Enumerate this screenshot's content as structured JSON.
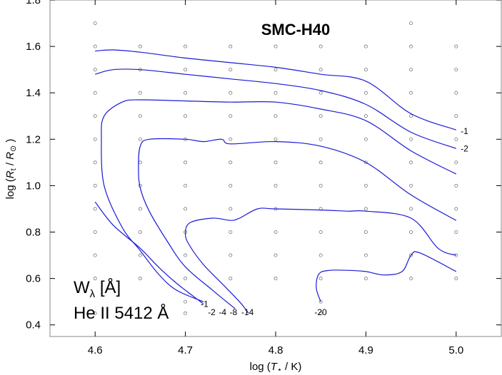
{
  "chart_data": {
    "type": "contour",
    "title": "SMC-H40",
    "xlabel": {
      "pre": "log (",
      "sym": "T",
      "sub": "⋆",
      "post": " / K)"
    },
    "ylabel": {
      "pre": "log (",
      "sym": "R",
      "sub": "t",
      "mid": " / ",
      "sym2": "R",
      "sub2": "⊙",
      "post": " )"
    },
    "xlim": [
      4.55,
      5.05
    ],
    "ylim": [
      0.35,
      1.8
    ],
    "xticks": [
      4.6,
      4.7,
      4.8,
      4.9,
      5.0
    ],
    "xtick_labels": [
      "4.6",
      "4.7",
      "4.8",
      "4.9",
      "5.0"
    ],
    "yticks": [
      0.4,
      0.6,
      0.8,
      1.0,
      1.2,
      1.4,
      1.6,
      1.8
    ],
    "ytick_labels": [
      "0.4",
      "0.6",
      "0.8",
      "1.0",
      "1.2",
      "1.4",
      "1.6",
      "1.8"
    ],
    "annotation": {
      "line1_main": "W",
      "line1_sub": "λ",
      "line1_unit": " [Å]",
      "line2": "He II 5412 Å"
    },
    "grid_models": {
      "x": [
        4.6,
        4.65,
        4.7,
        4.75,
        4.8,
        4.85,
        4.9,
        4.95,
        5.0
      ],
      "y": [
        0.45,
        0.5,
        0.6,
        0.7,
        0.8,
        0.9,
        1.0,
        1.1,
        1.2,
        1.3,
        1.4,
        1.5,
        1.6,
        1.7
      ],
      "missing": [
        [
          4.65,
          0.45
        ],
        [
          4.75,
          0.45
        ],
        [
          4.8,
          0.45
        ],
        [
          4.9,
          0.45
        ],
        [
          4.95,
          0.45
        ],
        [
          5.0,
          0.45
        ],
        [
          4.6,
          0.5
        ],
        [
          4.65,
          0.5
        ],
        [
          4.75,
          0.5
        ],
        [
          4.8,
          0.5
        ],
        [
          4.9,
          0.5
        ],
        [
          4.95,
          0.5
        ],
        [
          5.0,
          0.5
        ],
        [
          4.65,
          1.7
        ],
        [
          4.7,
          1.7
        ],
        [
          4.75,
          1.7
        ],
        [
          4.8,
          1.7
        ],
        [
          4.85,
          1.7
        ],
        [
          4.9,
          1.7
        ],
        [
          5.0,
          1.7
        ]
      ]
    },
    "series": [
      {
        "label": "-1",
        "x": [
          4.6,
          4.62,
          4.65,
          4.7,
          4.75,
          4.8,
          4.85,
          4.9,
          4.95,
          5.0
        ],
        "y": [
          1.58,
          1.585,
          1.575,
          1.55,
          1.53,
          1.51,
          1.48,
          1.45,
          1.31,
          1.24
        ]
      },
      {
        "label": "-2",
        "x": [
          4.6,
          4.62,
          4.65,
          4.7,
          4.75,
          4.8,
          4.85,
          4.9,
          4.95,
          5.0
        ],
        "y": [
          1.48,
          1.5,
          1.5,
          1.48,
          1.46,
          1.44,
          1.41,
          1.35,
          1.23,
          1.16
        ]
      },
      {
        "label": "-4",
        "x": [
          4.72,
          4.69,
          4.67,
          4.65,
          4.63,
          4.61,
          4.607,
          4.61,
          4.63,
          4.65,
          4.7,
          4.75,
          4.8,
          4.85,
          4.9,
          4.95,
          5.0
        ],
        "y": [
          0.5,
          0.55,
          0.62,
          0.72,
          0.82,
          1.0,
          1.2,
          1.3,
          1.36,
          1.37,
          1.365,
          1.36,
          1.36,
          1.33,
          1.28,
          1.15,
          1.05
        ]
      },
      {
        "label": "-8",
        "x": [
          4.755,
          4.73,
          4.7,
          4.68,
          4.66,
          4.65,
          4.648,
          4.65,
          4.66,
          4.7,
          4.72,
          4.74,
          4.75,
          4.8,
          4.85,
          4.9,
          4.95,
          5.0
        ],
        "y": [
          0.47,
          0.55,
          0.65,
          0.76,
          0.89,
          0.99,
          1.08,
          1.17,
          1.2,
          1.2,
          1.19,
          1.2,
          1.18,
          1.19,
          1.17,
          1.1,
          0.96,
          0.85
        ]
      },
      {
        "label": "-14",
        "x": [
          4.77,
          4.76,
          4.74,
          4.72,
          4.705,
          4.7,
          4.705,
          4.73,
          4.75,
          4.76,
          4.78,
          4.8,
          4.85,
          4.88,
          4.9,
          4.95,
          4.98,
          5.0
        ],
        "y": [
          0.45,
          0.5,
          0.58,
          0.66,
          0.74,
          0.79,
          0.84,
          0.86,
          0.85,
          0.86,
          0.9,
          0.9,
          0.895,
          0.89,
          0.89,
          0.86,
          0.73,
          0.7
        ]
      },
      {
        "label": "-20",
        "x": [
          4.85,
          4.845,
          4.848,
          4.86,
          4.88,
          4.9,
          4.92,
          4.94,
          4.95,
          4.96,
          5.0
        ],
        "y": [
          0.5,
          0.56,
          0.62,
          0.635,
          0.635,
          0.63,
          0.615,
          0.63,
          0.7,
          0.71,
          0.63
        ]
      },
      {
        "label": "",
        "x": [
          4.6,
          4.62,
          4.65,
          4.67,
          4.69,
          4.71,
          4.72
        ],
        "y": [
          0.93,
          0.83,
          0.73,
          0.65,
          0.58,
          0.52,
          0.49
        ]
      }
    ],
    "contour_labels": [
      {
        "text": "-1",
        "x": 5.005,
        "y": 1.235
      },
      {
        "text": "-2",
        "x": 5.005,
        "y": 1.16
      },
      {
        "text": "-1",
        "x": 4.717,
        "y": 0.49
      },
      {
        "text": "-2",
        "x": 4.725,
        "y": 0.455
      },
      {
        "text": "-4",
        "x": 4.737,
        "y": 0.455
      },
      {
        "text": "-8",
        "x": 4.749,
        "y": 0.455
      },
      {
        "text": "-14",
        "x": 4.762,
        "y": 0.455
      },
      {
        "text": "-20",
        "x": 4.843,
        "y": 0.455
      }
    ],
    "grid": false
  }
}
